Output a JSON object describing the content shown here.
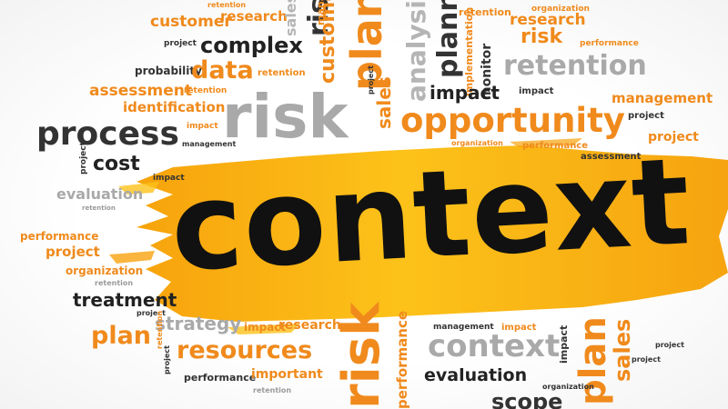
{
  "colors": {
    "dark": "#222222",
    "gray": "#a9a9a9",
    "orange": "#f08a1c",
    "brush": "#f9b10f"
  },
  "words": {
    "main": "context",
    "w01": "customer",
    "w02": "research",
    "w03": "retention",
    "w04": "sales",
    "w05": "risk",
    "w06": "management",
    "w07": "analysis",
    "w08": "planning",
    "w09": "retention",
    "w10": "research",
    "w11": "organization",
    "w12": "project",
    "w13": "complex",
    "w14": "customer",
    "w15": "plan",
    "w16": "implementation",
    "w17": "risk",
    "w18": "performance",
    "w19": "probability",
    "w20": "data",
    "w21": "retention",
    "w22": "project",
    "w23": "monitor",
    "w24": "retention",
    "w25": "assessment",
    "w26": "retention",
    "w27": "impact",
    "w28": "impact",
    "w29": "management",
    "w30": "identification",
    "w31": "risk",
    "w32": "sales",
    "w33": "opportunity",
    "w34": "project",
    "w35": "process",
    "w36": "impact",
    "w37": "project",
    "w38": "management",
    "w39": "organization",
    "w40": "performance",
    "w41": "project",
    "w42": "cost",
    "w43": "impact",
    "w44": "assessment",
    "w45": "evaluation",
    "w46": "retention",
    "w47": "performance",
    "w48": "project",
    "w49": "organization",
    "w50": "retention",
    "w51": "treatment",
    "w52": "project",
    "w53": "plan",
    "w54": "strategy",
    "w55": "impact",
    "w56": "research",
    "w57": "management",
    "w58": "impact",
    "w59": "retention",
    "w60": "project",
    "w61": "resources",
    "w62": "risk",
    "w63": "performance",
    "w64": "context",
    "w65": "plan",
    "w66": "sales",
    "w67": "impact",
    "w68": "performance",
    "w69": "important",
    "w70": "evaluation",
    "w71": "project",
    "w72": "organization",
    "w73": "scope",
    "w74": "retention",
    "w75": "project"
  }
}
